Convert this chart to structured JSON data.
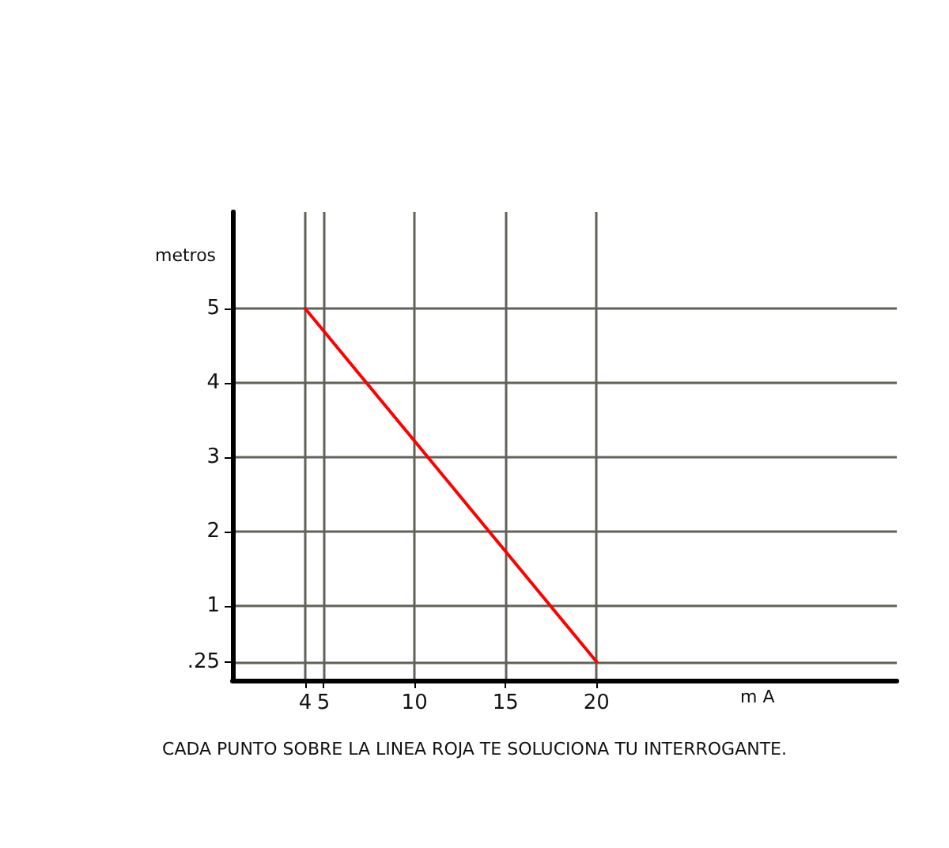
{
  "chart_data": {
    "type": "line",
    "xlabel": "m A",
    "ylabel": "metros",
    "annotations": [
      "CADA PUNTO SOBRE LA LINEA ROJA TE SOLUCIONA TU INTERROGANTE."
    ],
    "x": [
      4,
      20
    ],
    "series": [
      {
        "color": "#ff0000",
        "values": [
          5,
          0.25
        ]
      }
    ],
    "xlim": [
      0,
      36.5
    ],
    "ylim": [
      0,
      6.3
    ],
    "xticks": [
      4,
      5,
      10,
      15,
      20
    ],
    "yticks": [
      {
        "value": 0.25,
        "label": ".25"
      },
      1,
      2,
      3,
      4,
      5
    ],
    "grid": true,
    "marker": "none",
    "line_style": "solid"
  }
}
